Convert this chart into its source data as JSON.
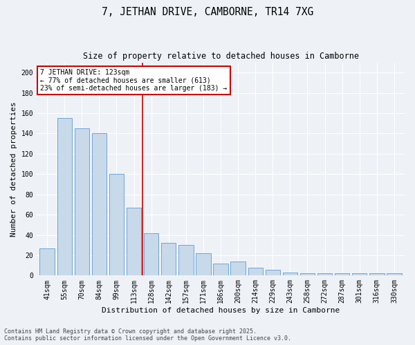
{
  "title": "7, JETHAN DRIVE, CAMBORNE, TR14 7XG",
  "subtitle": "Size of property relative to detached houses in Camborne",
  "xlabel": "Distribution of detached houses by size in Camborne",
  "ylabel": "Number of detached properties",
  "categories": [
    "41sqm",
    "55sqm",
    "70sqm",
    "84sqm",
    "99sqm",
    "113sqm",
    "128sqm",
    "142sqm",
    "157sqm",
    "171sqm",
    "186sqm",
    "200sqm",
    "214sqm",
    "229sqm",
    "243sqm",
    "258sqm",
    "272sqm",
    "287sqm",
    "301sqm",
    "316sqm",
    "330sqm"
  ],
  "values": [
    27,
    155,
    145,
    140,
    100,
    67,
    42,
    32,
    30,
    22,
    12,
    14,
    8,
    6,
    3,
    2,
    2,
    2,
    2,
    2,
    2
  ],
  "bar_color": "#c8d9ea",
  "bar_edge_color": "#5b9bd5",
  "annotation_line1": "7 JETHAN DRIVE: 123sqm",
  "annotation_line2": "← 77% of detached houses are smaller (613)",
  "annotation_line3": "23% of semi-detached houses are larger (183) →",
  "annotation_box_color": "#ffffff",
  "annotation_box_edge": "#cc0000",
  "vline_color": "#cc0000",
  "background_color": "#eef2f7",
  "grid_color": "#ffffff",
  "ylim": [
    0,
    210
  ],
  "yticks": [
    0,
    20,
    40,
    60,
    80,
    100,
    120,
    140,
    160,
    180,
    200
  ],
  "footer_line1": "Contains HM Land Registry data © Crown copyright and database right 2025.",
  "footer_line2": "Contains public sector information licensed under the Open Government Licence v3.0.",
  "title_fontsize": 10.5,
  "subtitle_fontsize": 8.5,
  "axis_label_fontsize": 8,
  "tick_fontsize": 7,
  "footer_fontsize": 6,
  "prop_line_index": 5.5
}
